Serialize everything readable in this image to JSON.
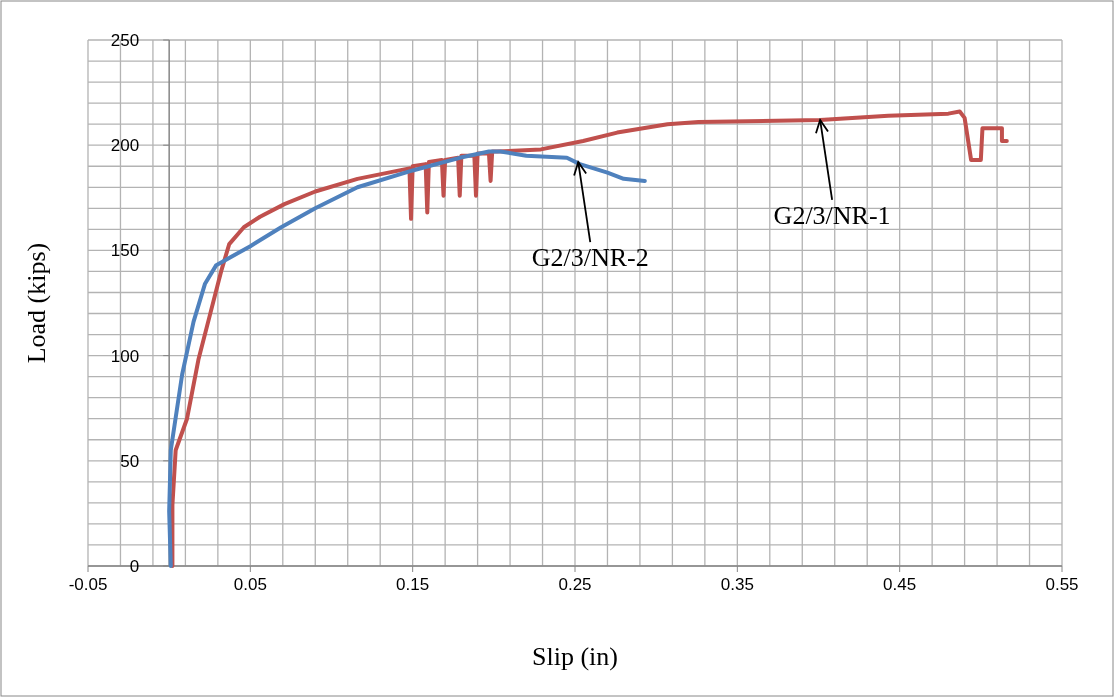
{
  "chart_data": {
    "type": "line",
    "xlabel": "Slip (in)",
    "ylabel": "Load (kips)",
    "xlim": [
      -0.05,
      0.55
    ],
    "ylim": [
      0,
      250
    ],
    "xticks": [
      -0.05,
      {
        "value": -0.03,
        "label": null
      },
      {
        "value": -0.01,
        "label": null
      },
      {
        "value": 0.01,
        "label": null
      },
      {
        "value": 0.03,
        "label": null
      },
      0.05,
      {
        "value": 0.07,
        "label": null
      },
      {
        "value": 0.09,
        "label": null
      },
      {
        "value": 0.11,
        "label": null
      },
      {
        "value": 0.13,
        "label": null
      },
      0.15,
      {
        "value": 0.17,
        "label": null
      },
      {
        "value": 0.19,
        "label": null
      },
      {
        "value": 0.21,
        "label": null
      },
      {
        "value": 0.23,
        "label": null
      },
      0.25,
      {
        "value": 0.27,
        "label": null
      },
      {
        "value": 0.29,
        "label": null
      },
      {
        "value": 0.31,
        "label": null
      },
      {
        "value": 0.33,
        "label": null
      },
      0.35,
      {
        "value": 0.37,
        "label": null
      },
      {
        "value": 0.39,
        "label": null
      },
      {
        "value": 0.41,
        "label": null
      },
      {
        "value": 0.43,
        "label": null
      },
      0.45,
      {
        "value": 0.47,
        "label": null
      },
      {
        "value": 0.49,
        "label": null
      },
      {
        "value": 0.51,
        "label": null
      },
      {
        "value": 0.53,
        "label": null
      },
      0.55
    ],
    "yticks": [
      0,
      {
        "value": 10,
        "label": null
      },
      {
        "value": 20,
        "label": null
      },
      {
        "value": 30,
        "label": null
      },
      {
        "value": 40,
        "label": null
      },
      50,
      {
        "value": 60,
        "label": null
      },
      {
        "value": 70,
        "label": null
      },
      {
        "value": 80,
        "label": null
      },
      {
        "value": 90,
        "label": null
      },
      100,
      {
        "value": 110,
        "label": null
      },
      {
        "value": 120,
        "label": null
      },
      {
        "value": 130,
        "label": null
      },
      {
        "value": 140,
        "label": null
      },
      150,
      {
        "value": 160,
        "label": null
      },
      {
        "value": 170,
        "label": null
      },
      {
        "value": 180,
        "label": null
      },
      {
        "value": 190,
        "label": null
      },
      200,
      {
        "value": 210,
        "label": null
      },
      {
        "value": 220,
        "label": null
      },
      {
        "value": 230,
        "label": null
      },
      {
        "value": 240,
        "label": null
      },
      250
    ],
    "grid": true,
    "marker": "none",
    "line_style": "solid",
    "series": [
      {
        "color": "#c0504d",
        "x": [
          0.002,
          0.002,
          0.004,
          0.011,
          0.018,
          0.025,
          0.032,
          0.037,
          0.046,
          0.056,
          0.071,
          0.09,
          0.116,
          0.148,
          0.149,
          0.15,
          0.158,
          0.159,
          0.16,
          0.168,
          0.169,
          0.17,
          0.178,
          0.179,
          0.18,
          0.188,
          0.189,
          0.19,
          0.197,
          0.198,
          0.199,
          0.202,
          0.229,
          0.255,
          0.276,
          0.307,
          0.326,
          0.401,
          0.443,
          0.48,
          0.487,
          0.49,
          0.494,
          0.5,
          0.501,
          0.513,
          0.513,
          0.516
        ],
        "values": [
          0,
          29,
          55,
          70,
          98,
          119,
          140,
          153,
          161,
          166,
          172,
          178,
          184,
          189,
          165,
          190,
          191,
          168,
          192,
          193,
          176,
          193,
          194,
          176,
          195,
          195,
          176,
          196,
          196,
          183,
          197,
          197,
          198,
          202,
          206,
          210,
          211,
          212,
          214,
          215,
          216,
          213,
          193,
          193,
          208,
          208,
          202,
          202
        ]
      },
      {
        "color": "#4f81bd",
        "x": [
          0.001,
          0.0,
          0.001,
          0.008,
          0.015,
          0.022,
          0.029,
          0.05,
          0.069,
          0.09,
          0.116,
          0.15,
          0.179,
          0.197,
          0.204,
          0.22,
          0.245,
          0.253,
          0.27,
          0.28,
          0.293
        ],
        "values": [
          0,
          26,
          55,
          91,
          116,
          134,
          143,
          152,
          161,
          170,
          180,
          188,
          194,
          197,
          197,
          195,
          194,
          191,
          187,
          184,
          183
        ]
      }
    ],
    "annotations": [
      {
        "text": "G2/3/NR-2",
        "x": 0.252,
        "y": 192
      },
      {
        "text": "G2/3/NR-1",
        "x": 0.401,
        "y": 212
      }
    ]
  }
}
